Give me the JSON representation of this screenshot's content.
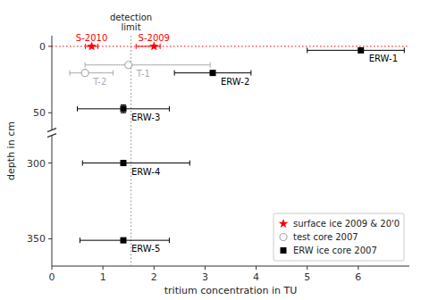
{
  "chart_data": [
    {
      "type": "scatter",
      "ylabel": "depth in cm",
      "xlim": [
        0,
        7
      ],
      "ylim": [
        65,
        -8
      ],
      "xticks": [
        0,
        1,
        2,
        3,
        4,
        5,
        6
      ],
      "yticks": [
        0,
        50
      ],
      "tick_labels": "y",
      "annotations": [
        {
          "text": "detection\nlimit",
          "x": 1.55
        }
      ],
      "vlines": [
        {
          "x": 1.55,
          "color": "#888888",
          "line_style": "dotted"
        }
      ],
      "hlines": [
        {
          "y": 0,
          "color": "#ff0000",
          "line_style": "dotted"
        }
      ],
      "series": [
        {
          "color": "#ff0000",
          "marker": "star",
          "point_labels": [
            "S-2009",
            "S-2010"
          ],
          "x": [
            2.0,
            0.78
          ],
          "values": [
            0,
            0
          ],
          "xerr_low": [
            0.35,
            0.12
          ],
          "xerr_high": [
            0.12,
            0.12
          ]
        },
        {
          "color": "#aaaaaa",
          "marker": "circle",
          "point_labels": [
            "T-1",
            "T-2"
          ],
          "x": [
            1.5,
            0.65
          ],
          "values": [
            14,
            20
          ],
          "xerr_low": [
            0.85,
            0.3
          ],
          "xerr_high": [
            1.6,
            0.55
          ]
        },
        {
          "color": "#000000",
          "marker": "square",
          "point_labels": [
            "ERW-1",
            "ERW-2",
            "ERW-3"
          ],
          "x": [
            6.05,
            3.15,
            1.4
          ],
          "values": [
            3,
            20,
            47
          ],
          "xerr_low": [
            1.05,
            0.75,
            0.9
          ],
          "xerr_high": [
            0.85,
            0.75,
            0.9
          ],
          "yerr": [
            0,
            0,
            3
          ]
        }
      ]
    },
    {
      "type": "scatter",
      "xlabel": "tritium concentration in TU",
      "xlim": [
        0,
        7
      ],
      "ylim": [
        368,
        280
      ],
      "xticks": [
        0,
        1,
        2,
        3,
        4,
        5,
        6
      ],
      "yticks": [
        300,
        350
      ],
      "legend": "lower right",
      "vlines": [
        {
          "x": 1.55,
          "color": "#888888",
          "line_style": "dotted"
        }
      ],
      "series": [
        {
          "name": "surface ice 2009 & 20'0",
          "color": "#ff0000",
          "marker": "star",
          "x": [],
          "values": []
        },
        {
          "name": "test core 2007",
          "color": "#aaaaaa",
          "marker": "circle",
          "x": [],
          "values": []
        },
        {
          "name": "ERW ice core 2007",
          "color": "#000000",
          "marker": "square",
          "point_labels": [
            "ERW-4",
            "ERW-5"
          ],
          "x": [
            1.4,
            1.4
          ],
          "values": [
            300,
            351
          ],
          "xerr_low": [
            0.8,
            0.85
          ],
          "xerr_high": [
            1.3,
            0.9
          ],
          "yerr": [
            0,
            0
          ]
        }
      ]
    }
  ]
}
